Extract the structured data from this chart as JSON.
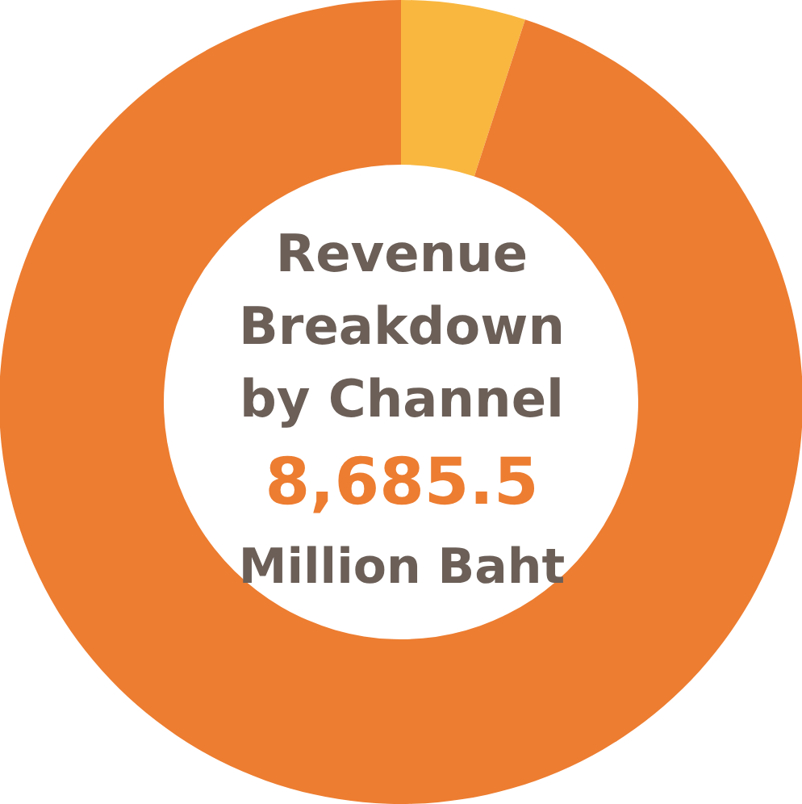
{
  "chart_data": {
    "type": "donut",
    "title": "Revenue Breakdown by Channel",
    "categories": [
      null,
      null
    ],
    "values": [
      5,
      95
    ],
    "colors": [
      "#f9b740",
      "#ed7d31"
    ],
    "annotations": [
      "8,685.5",
      "Million Baht"
    ]
  }
}
